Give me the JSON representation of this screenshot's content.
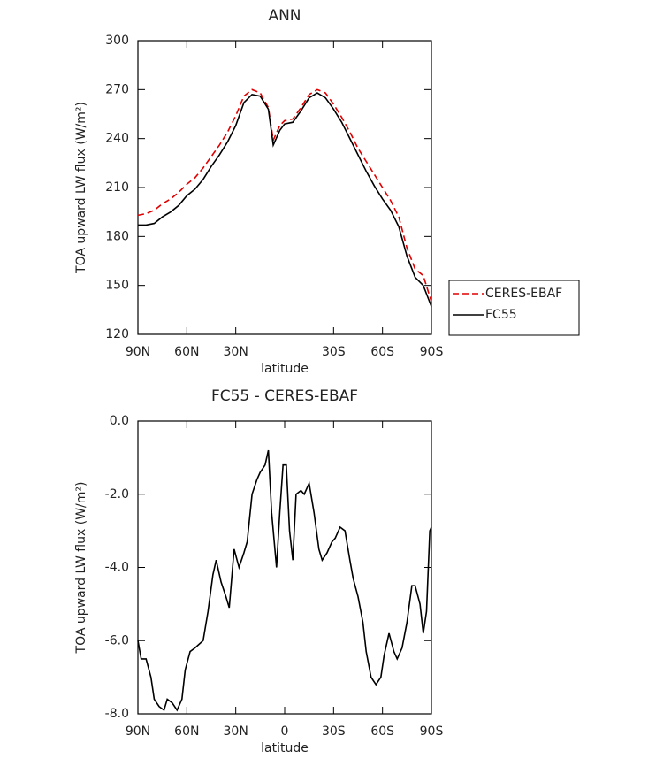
{
  "chart_data": [
    {
      "type": "line",
      "title": "ANN",
      "xlabel": "latitude",
      "ylabel": "TOA upward LW flux (W/m²)",
      "x": [
        90,
        85,
        80,
        75,
        70,
        65,
        60,
        55,
        50,
        45,
        40,
        35,
        30,
        25,
        20,
        15,
        10,
        7,
        3,
        0,
        -5,
        -10,
        -15,
        -20,
        -25,
        -30,
        -35,
        -40,
        -45,
        -50,
        -55,
        -60,
        -65,
        -70,
        -75,
        -80,
        -85,
        -90
      ],
      "series": [
        {
          "name": "CERES-EBAF",
          "color": "#e00000",
          "linestyle": "dashed",
          "values": [
            193,
            194,
            196,
            200,
            203,
            207,
            212,
            216,
            222,
            229,
            236,
            244,
            254,
            266,
            270,
            268,
            259,
            239,
            248,
            251,
            252,
            259,
            267,
            270,
            268,
            261,
            253,
            244,
            234,
            226,
            218,
            210,
            202,
            192,
            173,
            160,
            156,
            140
          ]
        },
        {
          "name": "FC55",
          "color": "#000000",
          "linestyle": "solid",
          "values": [
            187,
            187,
            188,
            192,
            195,
            199,
            205,
            209,
            215,
            223,
            230,
            238,
            248,
            262,
            267,
            266,
            258,
            236,
            245,
            249,
            250,
            257,
            265,
            268,
            265,
            258,
            250,
            240,
            230,
            220,
            211,
            203,
            196,
            186,
            168,
            155,
            150,
            137
          ]
        }
      ],
      "xlim": [
        90,
        -90
      ],
      "xticks": [
        {
          "value": 90,
          "label": "90N"
        },
        {
          "value": 60,
          "label": "60N"
        },
        {
          "value": 30,
          "label": "30N"
        },
        {
          "value": -30,
          "label": "30S"
        },
        {
          "value": -60,
          "label": "60S"
        },
        {
          "value": -90,
          "label": "90S"
        }
      ],
      "ylim": [
        120,
        300
      ],
      "yticks": [
        120,
        150,
        180,
        210,
        240,
        270,
        300
      ],
      "legend": "outside-right"
    },
    {
      "type": "line",
      "title": "FC55 - CERES-EBAF",
      "xlabel": "latitude",
      "ylabel": "TOA upward LW flux (W/m²)",
      "x": [
        90,
        88,
        85,
        82,
        80,
        77,
        74,
        72,
        69,
        66,
        63,
        61,
        58,
        55,
        50,
        47,
        44,
        42,
        39,
        36,
        34,
        31,
        28,
        25,
        23,
        20,
        17,
        15,
        12,
        10,
        8,
        5,
        3,
        1,
        -1,
        -3,
        -5,
        -7,
        -10,
        -12,
        -15,
        -18,
        -21,
        -23,
        -26,
        -29,
        -31,
        -34,
        -37,
        -40,
        -42,
        -45,
        -48,
        -50,
        -53,
        -56,
        -59,
        -61,
        -64,
        -67,
        -69,
        -72,
        -75,
        -78,
        -80,
        -83,
        -85,
        -87,
        -89,
        -90
      ],
      "values": [
        -6.0,
        -6.5,
        -6.5,
        -7.0,
        -7.6,
        -7.8,
        -7.9,
        -7.6,
        -7.7,
        -7.9,
        -7.6,
        -6.8,
        -6.3,
        -6.2,
        -6.0,
        -5.2,
        -4.2,
        -3.8,
        -4.4,
        -4.8,
        -5.1,
        -3.5,
        -4.0,
        -3.6,
        -3.3,
        -2.0,
        -1.6,
        -1.4,
        -1.2,
        -0.8,
        -2.5,
        -4.0,
        -2.5,
        -1.2,
        -1.2,
        -3.0,
        -3.8,
        -2.0,
        -1.9,
        -2.0,
        -1.7,
        -2.5,
        -3.5,
        -3.8,
        -3.6,
        -3.3,
        -3.2,
        -2.9,
        -3.0,
        -3.8,
        -4.3,
        -4.8,
        -5.5,
        -6.3,
        -7.0,
        -7.2,
        -7.0,
        -6.4,
        -5.8,
        -6.3,
        -6.5,
        -6.2,
        -5.5,
        -4.5,
        -4.5,
        -5.0,
        -5.8,
        -5.2,
        -3.0,
        -2.9
      ],
      "color": "#000000",
      "xlim": [
        90,
        -90
      ],
      "xticks": [
        {
          "value": 90,
          "label": "90N"
        },
        {
          "value": 60,
          "label": "60N"
        },
        {
          "value": 30,
          "label": "30N"
        },
        {
          "value": 0,
          "label": "0"
        },
        {
          "value": -30,
          "label": "30S"
        },
        {
          "value": -60,
          "label": "60S"
        },
        {
          "value": -90,
          "label": "90S"
        }
      ],
      "ylim": [
        -8,
        0
      ],
      "yticks": [
        {
          "value": -8,
          "label": "-8.0"
        },
        {
          "value": -6,
          "label": "-6.0"
        },
        {
          "value": -4,
          "label": "-4.0"
        },
        {
          "value": -2,
          "label": "-2.0"
        },
        {
          "value": 0,
          "label": "0.0"
        }
      ]
    }
  ]
}
